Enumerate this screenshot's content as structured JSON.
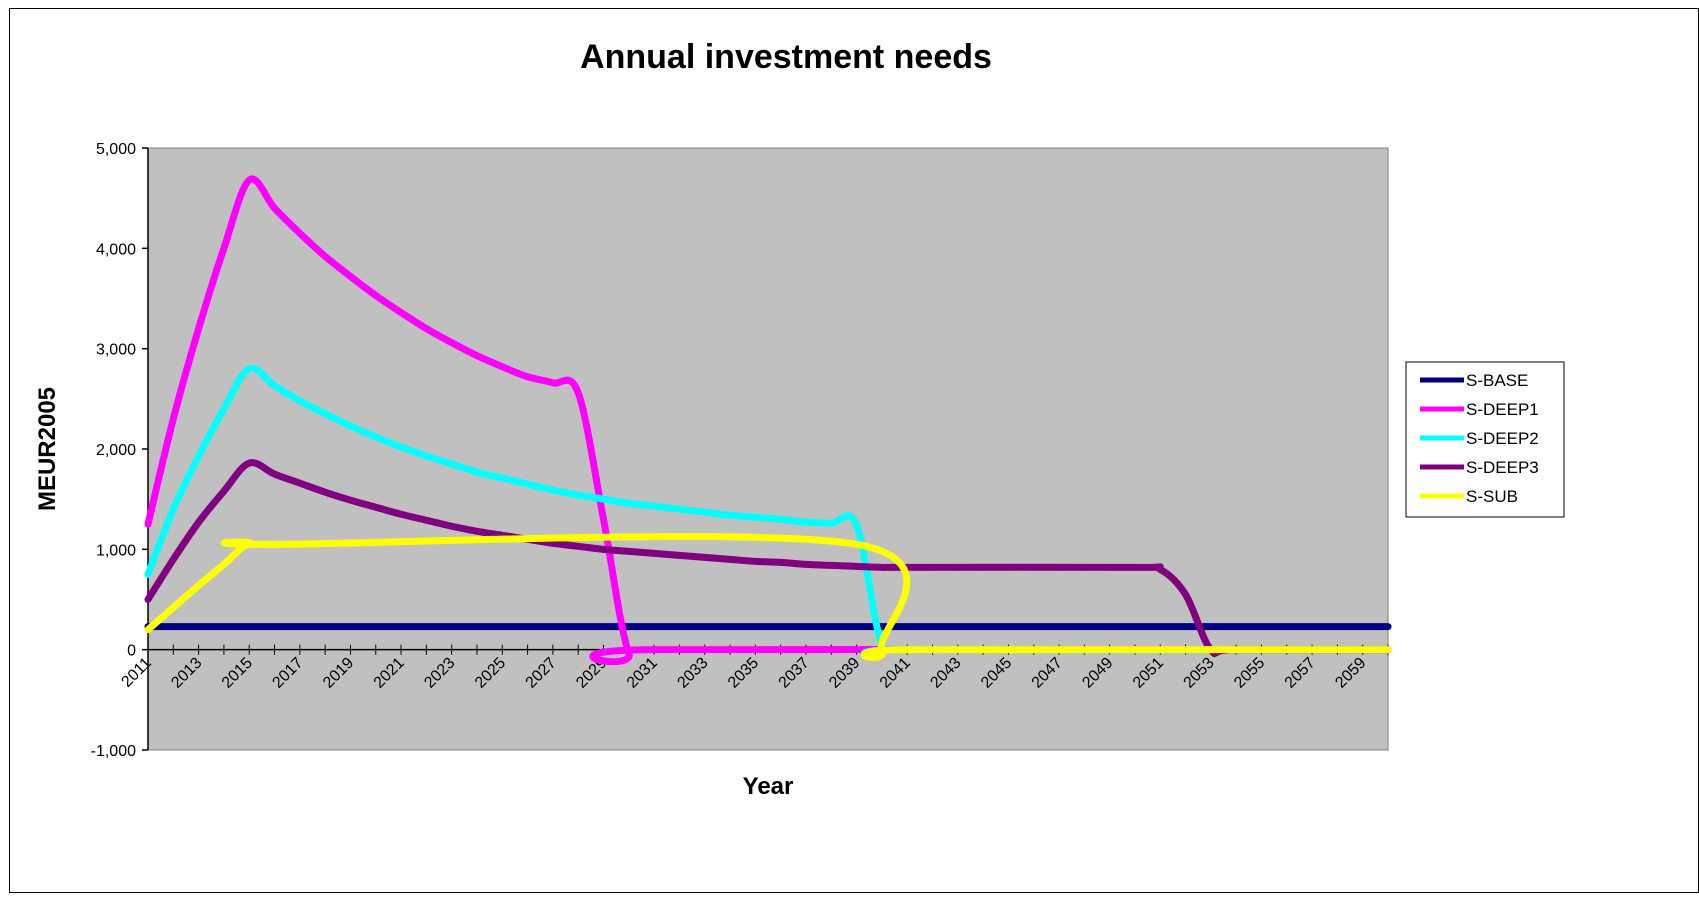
{
  "colors": {
    "plot_background": "#c0c0c0",
    "S-BASE": "#000080",
    "S-DEEP1": "#ff00ff",
    "S-DEEP2": "#00ffff",
    "S-DEEP3": "#800080",
    "S-SUB": "#ffff00"
  },
  "chart_data": {
    "type": "line",
    "title": "Annual investment needs",
    "xlabel": "Year",
    "ylabel": "MEUR2005",
    "xlim": [
      2011,
      2060
    ],
    "ylim": [
      -1000,
      5000
    ],
    "y_ticks": [
      -1000,
      0,
      1000,
      2000,
      3000,
      4000,
      5000
    ],
    "y_tick_labels": [
      "-1,000",
      "0",
      "1,000",
      "2,000",
      "3,000",
      "4,000",
      "5,000"
    ],
    "x_tick_labels": [
      "2011",
      "2013",
      "2015",
      "2017",
      "2019",
      "2021",
      "2023",
      "2025",
      "2027",
      "2029",
      "2031",
      "2033",
      "2035",
      "2037",
      "2039",
      "2041",
      "2043",
      "2045",
      "2047",
      "2049",
      "2051",
      "2053",
      "2055",
      "2057",
      "2059"
    ],
    "grid": false,
    "legend_position": "right",
    "series": [
      {
        "name": "S-BASE",
        "color": "#000080",
        "points": [
          [
            2011,
            230
          ],
          [
            2060,
            230
          ]
        ]
      },
      {
        "name": "S-DEEP1",
        "color": "#ff00ff",
        "points": [
          [
            2011,
            1250
          ],
          [
            2012,
            2300
          ],
          [
            2013,
            3200
          ],
          [
            2014,
            4000
          ],
          [
            2015,
            4680
          ],
          [
            2016,
            4400
          ],
          [
            2017,
            4150
          ],
          [
            2018,
            3920
          ],
          [
            2019,
            3720
          ],
          [
            2020,
            3530
          ],
          [
            2021,
            3360
          ],
          [
            2022,
            3200
          ],
          [
            2023,
            3060
          ],
          [
            2024,
            2930
          ],
          [
            2025,
            2820
          ],
          [
            2026,
            2720
          ],
          [
            2027,
            2660
          ],
          [
            2028,
            2560
          ],
          [
            2029,
            1300
          ],
          [
            2030,
            -30
          ],
          [
            2031,
            0
          ],
          [
            2060,
            0
          ]
        ]
      },
      {
        "name": "S-DEEP2",
        "color": "#00ffff",
        "points": [
          [
            2011,
            750
          ],
          [
            2012,
            1400
          ],
          [
            2013,
            1930
          ],
          [
            2014,
            2400
          ],
          [
            2015,
            2800
          ],
          [
            2016,
            2630
          ],
          [
            2017,
            2480
          ],
          [
            2018,
            2350
          ],
          [
            2019,
            2230
          ],
          [
            2020,
            2120
          ],
          [
            2021,
            2020
          ],
          [
            2022,
            1930
          ],
          [
            2023,
            1850
          ],
          [
            2024,
            1770
          ],
          [
            2025,
            1710
          ],
          [
            2026,
            1650
          ],
          [
            2027,
            1590
          ],
          [
            2028,
            1540
          ],
          [
            2029,
            1500
          ],
          [
            2030,
            1460
          ],
          [
            2031,
            1430
          ],
          [
            2032,
            1400
          ],
          [
            2033,
            1370
          ],
          [
            2034,
            1340
          ],
          [
            2035,
            1320
          ],
          [
            2036,
            1300
          ],
          [
            2037,
            1270
          ],
          [
            2038,
            1260
          ],
          [
            2039,
            1240
          ],
          [
            2040,
            50
          ],
          [
            2041,
            0
          ],
          [
            2060,
            0
          ]
        ]
      },
      {
        "name": "S-DEEP3",
        "color": "#800080",
        "points": [
          [
            2011,
            500
          ],
          [
            2012,
            900
          ],
          [
            2013,
            1270
          ],
          [
            2014,
            1580
          ],
          [
            2015,
            1860
          ],
          [
            2016,
            1750
          ],
          [
            2017,
            1660
          ],
          [
            2018,
            1570
          ],
          [
            2019,
            1490
          ],
          [
            2020,
            1420
          ],
          [
            2021,
            1350
          ],
          [
            2022,
            1290
          ],
          [
            2023,
            1230
          ],
          [
            2024,
            1180
          ],
          [
            2025,
            1140
          ],
          [
            2026,
            1100
          ],
          [
            2027,
            1060
          ],
          [
            2028,
            1030
          ],
          [
            2029,
            1000
          ],
          [
            2030,
            980
          ],
          [
            2031,
            960
          ],
          [
            2032,
            940
          ],
          [
            2033,
            920
          ],
          [
            2034,
            900
          ],
          [
            2035,
            880
          ],
          [
            2036,
            870
          ],
          [
            2037,
            850
          ],
          [
            2038,
            840
          ],
          [
            2039,
            830
          ],
          [
            2040,
            820
          ],
          [
            2041,
            820
          ],
          [
            2050,
            820
          ],
          [
            2051,
            800
          ],
          [
            2052,
            550
          ],
          [
            2053,
            0
          ],
          [
            2054,
            0
          ],
          [
            2060,
            0
          ]
        ]
      },
      {
        "name": "S-SUB",
        "color": "#ffff00",
        "points": [
          [
            2011,
            200
          ],
          [
            2012,
            420
          ],
          [
            2013,
            640
          ],
          [
            2014,
            850
          ],
          [
            2015,
            1060
          ],
          [
            2016,
            1050
          ],
          [
            2039,
            1050
          ],
          [
            2040,
            0
          ],
          [
            2041,
            0
          ],
          [
            2060,
            0
          ]
        ]
      }
    ]
  }
}
